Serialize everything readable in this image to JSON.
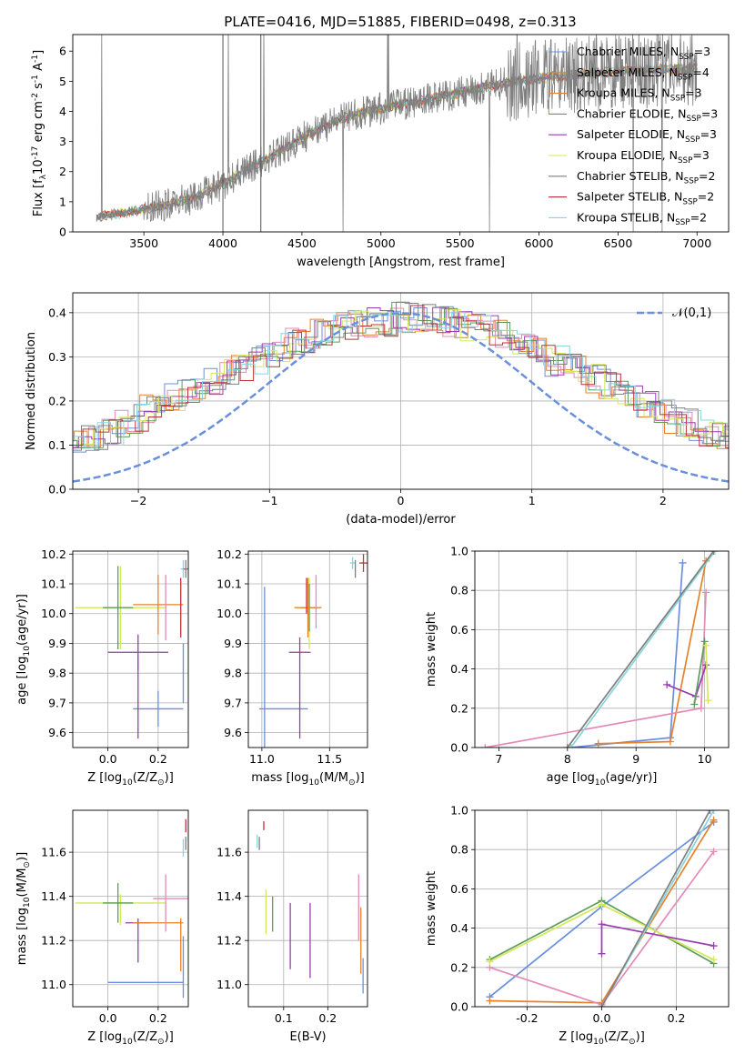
{
  "figure": {
    "title": "PLATE=0416, MJD=51885, FIBERID=0498, z=0.313"
  },
  "colors": {
    "blue": "#6a8fde",
    "orange": "#e8822a",
    "pink": "#e48ab7",
    "green": "#5c9d5c",
    "purple": "#9a3cb0",
    "yellow": "#d4e85a",
    "grey": "#7f7f7f",
    "red": "#c0303a",
    "cyan": "#88d6dc",
    "gauss": "#6a8fde",
    "grid": "#b0b0b0"
  },
  "chart_data": [
    {
      "id": "spectrum",
      "type": "line",
      "title": "PLATE=0416, MJD=51885, FIBERID=0498, z=0.313",
      "xlabel": "wavelength [Angstrom, rest frame]",
      "ylabel": "Flux [f$_\\lambda$10$^{-17}$ erg cm$^{-2}$ s$^{-1}$ A$^{-1}$]",
      "xlim": [
        3050,
        7200
      ],
      "ylim": [
        0,
        6.55
      ],
      "xticks": [
        3500,
        4000,
        4500,
        5000,
        5500,
        6000,
        6500,
        7000
      ],
      "yticks": [
        0,
        1,
        2,
        3,
        4,
        5,
        6
      ],
      "grid": false,
      "legend_position": "top-right",
      "data_color": "#7f7f7f",
      "continuum": {
        "x": [
          3200,
          3400,
          3600,
          3800,
          4000,
          4200,
          4400,
          4600,
          4800,
          5000,
          5200,
          5400,
          5600,
          5800,
          6000,
          6200,
          6400,
          6600,
          6800,
          7000
        ],
        "y": [
          0.5,
          0.65,
          0.85,
          1.1,
          1.6,
          2.2,
          2.8,
          3.4,
          3.85,
          4.1,
          4.3,
          4.5,
          4.75,
          4.95,
          5.1,
          5.2,
          5.3,
          5.35,
          5.4,
          5.45
        ]
      },
      "series": [
        {
          "name": "Chabrier MILES, N$_{SSP}$=3",
          "color": "#6a8fde"
        },
        {
          "name": "Salpeter MILES, N$_{SSP}$=4",
          "color": "#e8822a"
        },
        {
          "name": "Kroupa MILES, N$_{SSP}$=3",
          "color": "#e8822a"
        },
        {
          "name": "Chabrier ELODIE, N$_{SSP}$=3",
          "color": "#5c9d5c"
        },
        {
          "name": "Salpeter ELODIE, N$_{SSP}$=3",
          "color": "#9a3cb0"
        },
        {
          "name": "Kroupa ELODIE, N$_{SSP}$=3",
          "color": "#d4e85a"
        },
        {
          "name": "Chabrier STELIB, N$_{SSP}$=2",
          "color": "#7f7f7f"
        },
        {
          "name": "Salpeter STELIB, N$_{SSP}$=2",
          "color": "#c0303a"
        },
        {
          "name": "Kroupa STELIB, N$_{SSP}$=2",
          "color": "#88d6dc"
        }
      ]
    },
    {
      "id": "residuals",
      "type": "line",
      "xlabel": "(data-model)/error",
      "ylabel": "Normed distribution",
      "xlim": [
        -2.5,
        2.5
      ],
      "ylim": [
        0,
        0.445
      ],
      "xticks": [
        -2,
        -1,
        0,
        1,
        2
      ],
      "yticks": [
        0.0,
        0.1,
        0.2,
        0.3,
        0.4
      ],
      "grid": true,
      "legend_position": "top-right",
      "gaussian": {
        "name": "$\\mathcal{N}(0,1)$",
        "color": "#6a8fde"
      },
      "bin_width": 0.1,
      "base_hist": [
        0.03,
        0.04,
        0.06,
        0.06,
        0.07,
        0.08,
        0.09,
        0.11,
        0.12,
        0.13,
        0.15,
        0.16,
        0.18,
        0.19,
        0.21,
        0.22,
        0.24,
        0.25,
        0.27,
        0.28,
        0.29,
        0.31,
        0.32,
        0.33,
        0.34,
        0.35,
        0.36,
        0.37,
        0.37,
        0.38,
        0.38,
        0.39,
        0.39,
        0.39,
        0.38,
        0.38,
        0.37,
        0.37,
        0.36,
        0.35,
        0.33,
        0.32,
        0.31,
        0.29,
        0.28,
        0.27,
        0.25,
        0.24,
        0.22,
        0.21,
        0.19,
        0.18,
        0.16,
        0.15,
        0.13,
        0.12,
        0.11,
        0.09,
        0.08,
        0.07,
        0.06,
        0.05,
        0.04,
        0.04,
        0.03
      ]
    },
    {
      "id": "age_vs_Z",
      "type": "scatter",
      "xlabel": "Z [log$_{10}$(Z/Z$_\\odot$)]",
      "ylabel": "age  [log$_{10}$(age/yr)]",
      "xlim": [
        -0.14,
        0.32
      ],
      "ylim": [
        9.55,
        10.21
      ],
      "xticks": [
        0.0,
        0.2
      ],
      "yticks": [
        9.6,
        9.7,
        9.8,
        9.9,
        10.0,
        10.1,
        10.2
      ],
      "grid": true,
      "points": [
        {
          "color": "#6a8fde",
          "x": 0.2,
          "xerr": 0.1,
          "y": 9.68,
          "yerr": 0.06
        },
        {
          "color": "#6a8fde",
          "x": 0.3,
          "xerr": 0.0,
          "y": 9.8,
          "yerr": 0.1
        },
        {
          "color": "#9a3cb0",
          "x": 0.12,
          "xerr": 0.12,
          "y": 9.87,
          "yerr": 0.06
        },
        {
          "color": "#9a3cb0",
          "x": 0.12,
          "xerr": 0.0,
          "y": 9.72,
          "yerr": 0.14
        },
        {
          "color": "#d4e85a",
          "x": 0.05,
          "xerr": 0.18,
          "y": 10.02,
          "yerr": 0.14
        },
        {
          "color": "#5c9d5c",
          "x": 0.04,
          "xerr": 0.06,
          "y": 10.02,
          "yerr": 0.14
        },
        {
          "color": "#e8822a",
          "x": 0.2,
          "xerr": 0.1,
          "y": 10.03,
          "yerr": 0.1
        },
        {
          "color": "#e48ab7",
          "x": 0.23,
          "xerr": 0.0,
          "y": 10.02,
          "yerr": 0.11
        },
        {
          "color": "#c0303a",
          "x": 0.29,
          "xerr": 0.0,
          "y": 10.02,
          "yerr": 0.1
        },
        {
          "color": "#88d6dc",
          "x": 0.3,
          "xerr": 0.01,
          "y": 10.15,
          "yerr": 0.03
        },
        {
          "color": "#7f7f7f",
          "x": 0.31,
          "xerr": 0.01,
          "y": 10.15,
          "yerr": 0.03
        }
      ]
    },
    {
      "id": "age_vs_mass",
      "type": "scatter",
      "xlabel": "mass [log$_{10}$(M/M$_\\odot$)]",
      "ylabel": "",
      "xlim": [
        10.9,
        11.78
      ],
      "ylim": [
        9.55,
        10.21
      ],
      "xticks": [
        11.0,
        11.5
      ],
      "yticks": [
        9.6,
        9.7,
        9.8,
        9.9,
        10.0,
        10.1,
        10.2
      ],
      "grid": true,
      "points": [
        {
          "color": "#6a8fde",
          "x": 11.16,
          "xerr": 0.18,
          "y": 9.68,
          "yerr": 0.0
        },
        {
          "color": "#6a8fde",
          "x": 11.02,
          "xerr": 0.0,
          "y": 9.78,
          "yerr": 0.31
        },
        {
          "color": "#9a3cb0",
          "x": 11.28,
          "xerr": 0.08,
          "y": 9.87,
          "yerr": 0.0
        },
        {
          "color": "#9a3cb0",
          "x": 11.28,
          "xerr": 0.0,
          "y": 9.75,
          "yerr": 0.17
        },
        {
          "color": "#d4e85a",
          "x": 11.35,
          "xerr": 0.01,
          "y": 10.0,
          "yerr": 0.12
        },
        {
          "color": "#5c9d5c",
          "x": 11.35,
          "xerr": 0.06,
          "y": 10.02,
          "yerr": 0.08
        },
        {
          "color": "#e8822a",
          "x": 11.34,
          "xerr": 0.1,
          "y": 10.02,
          "yerr": 0.1
        },
        {
          "color": "#e48ab7",
          "x": 11.4,
          "xerr": 0.0,
          "y": 10.04,
          "yerr": 0.09
        },
        {
          "color": "#c0303a",
          "x": 11.33,
          "xerr": 0.0,
          "y": 10.06,
          "yerr": 0.06
        },
        {
          "color": "#88d6dc",
          "x": 11.67,
          "xerr": 0.02,
          "y": 10.17,
          "yerr": 0.02
        },
        {
          "color": "#7f7f7f",
          "x": 11.69,
          "xerr": 0.0,
          "y": 10.15,
          "yerr": 0.03
        },
        {
          "color": "#c0303a",
          "x": 11.75,
          "xerr": 0.03,
          "y": 10.17,
          "yerr": 0.03
        }
      ]
    },
    {
      "id": "weight_vs_age",
      "type": "line",
      "xlabel": "age  [log$_{10}$(age/yr)]",
      "ylabel": "mass weight",
      "xlim": [
        6.65,
        10.35
      ],
      "ylim": [
        0,
        1
      ],
      "xticks": [
        7,
        8,
        9,
        10
      ],
      "yticks": [
        0.0,
        0.2,
        0.4,
        0.6,
        0.8,
        1.0
      ],
      "grid": true,
      "series": [
        {
          "color": "#6a8fde",
          "points": [
            [
              8.05,
              0.0
            ],
            [
              9.5,
              0.05
            ],
            [
              9.68,
              0.94
            ]
          ]
        },
        {
          "color": "#e8822a",
          "points": [
            [
              8.45,
              0.02
            ],
            [
              9.5,
              0.03
            ],
            [
              10.02,
              0.95
            ]
          ]
        },
        {
          "color": "#e48ab7",
          "points": [
            [
              6.8,
              0.0
            ],
            [
              9.95,
              0.2
            ],
            [
              10.02,
              0.79
            ]
          ]
        },
        {
          "color": "#9a3cb0",
          "points": [
            [
              9.45,
              0.32
            ],
            [
              9.87,
              0.26
            ],
            [
              10.02,
              0.42
            ]
          ]
        },
        {
          "color": "#5c9d5c",
          "points": [
            [
              9.85,
              0.22
            ],
            [
              10.0,
              0.54
            ]
          ]
        },
        {
          "color": "#d4e85a",
          "points": [
            [
              10.02,
              0.52
            ],
            [
              10.05,
              0.24
            ]
          ]
        },
        {
          "color": "#88d6dc",
          "points": [
            [
              8.05,
              0.0
            ],
            [
              10.15,
              1.0
            ]
          ]
        },
        {
          "color": "#7f7f7f",
          "points": [
            [
              8.0,
              0.0
            ],
            [
              10.13,
              1.0
            ]
          ]
        }
      ]
    },
    {
      "id": "mass_vs_Z",
      "type": "scatter",
      "xlabel": "Z [log$_{10}$(Z/Z$_\\odot$)]",
      "ylabel": "mass [log$_{10}$(M/M$_\\odot$)]",
      "xlim": [
        -0.14,
        0.32
      ],
      "ylim": [
        10.9,
        11.79
      ],
      "xticks": [
        0.0,
        0.2
      ],
      "yticks": [
        11.0,
        11.2,
        11.4,
        11.6
      ],
      "grid": true,
      "points": [
        {
          "color": "#6a8fde",
          "x": 0.15,
          "xerr": 0.15,
          "y": 11.01,
          "yerr": 0.0
        },
        {
          "color": "#6a8fde",
          "x": 0.3,
          "xerr": 0.0,
          "y": 11.08,
          "yerr": 0.14
        },
        {
          "color": "#9a3cb0",
          "x": 0.12,
          "xerr": 0.05,
          "y": 11.28,
          "yerr": 0.0
        },
        {
          "color": "#9a3cb0",
          "x": 0.12,
          "xerr": 0.0,
          "y": 11.2,
          "yerr": 0.1
        },
        {
          "color": "#d4e85a",
          "x": 0.05,
          "xerr": 0.18,
          "y": 11.37,
          "yerr": 0.0
        },
        {
          "color": "#d4e85a",
          "x": 0.05,
          "xerr": 0.0,
          "y": 11.34,
          "yerr": 0.07
        },
        {
          "color": "#5c9d5c",
          "x": 0.04,
          "xerr": 0.06,
          "y": 11.37,
          "yerr": 0.09
        },
        {
          "color": "#e8822a",
          "x": 0.2,
          "xerr": 0.1,
          "y": 11.28,
          "yerr": 0.0
        },
        {
          "color": "#e8822a",
          "x": 0.29,
          "xerr": 0.0,
          "y": 11.18,
          "yerr": 0.12
        },
        {
          "color": "#e48ab7",
          "x": 0.23,
          "xerr": 0.0,
          "y": 11.37,
          "yerr": 0.13
        },
        {
          "color": "#e48ab7",
          "x": 0.25,
          "xerr": 0.07,
          "y": 11.39,
          "yerr": 0.0
        },
        {
          "color": "#c0303a",
          "x": 0.31,
          "xerr": 0.0,
          "y": 11.72,
          "yerr": 0.03
        },
        {
          "color": "#88d6dc",
          "x": 0.3,
          "xerr": 0.0,
          "y": 11.62,
          "yerr": 0.04
        },
        {
          "color": "#7f7f7f",
          "x": 0.31,
          "xerr": 0.0,
          "y": 11.64,
          "yerr": 0.03
        }
      ]
    },
    {
      "id": "mass_vs_ebv",
      "type": "scatter",
      "xlabel": "E(B-V)",
      "ylabel": "",
      "xlim": [
        0.02,
        0.29
      ],
      "ylim": [
        10.9,
        11.79
      ],
      "xticks": [
        0.1,
        0.2
      ],
      "yticks": [
        11.0,
        11.2,
        11.4,
        11.6
      ],
      "grid": true,
      "points": [
        {
          "color": "#88d6dc",
          "x": 0.04,
          "xerr": 0.0,
          "y": 11.65,
          "yerr": 0.03
        },
        {
          "color": "#7f7f7f",
          "x": 0.045,
          "xerr": 0.0,
          "y": 11.64,
          "yerr": 0.03
        },
        {
          "color": "#c0303a",
          "x": 0.055,
          "xerr": 0.0,
          "y": 11.72,
          "yerr": 0.02
        },
        {
          "color": "#d4e85a",
          "x": 0.06,
          "xerr": 0.0,
          "y": 11.33,
          "yerr": 0.1
        },
        {
          "color": "#5c9d5c",
          "x": 0.075,
          "xerr": 0.0,
          "y": 11.32,
          "yerr": 0.08
        },
        {
          "color": "#9a3cb0",
          "x": 0.115,
          "xerr": 0.0,
          "y": 11.22,
          "yerr": 0.15
        },
        {
          "color": "#9a3cb0",
          "x": 0.16,
          "xerr": 0.0,
          "y": 11.2,
          "yerr": 0.17
        },
        {
          "color": "#e48ab7",
          "x": 0.27,
          "xerr": 0.0,
          "y": 11.35,
          "yerr": 0.15
        },
        {
          "color": "#e8822a",
          "x": 0.275,
          "xerr": 0.0,
          "y": 11.2,
          "yerr": 0.15
        },
        {
          "color": "#6a8fde",
          "x": 0.28,
          "xerr": 0.0,
          "y": 11.04,
          "yerr": 0.08
        }
      ]
    },
    {
      "id": "weight_vs_Z",
      "type": "line",
      "xlabel": "Z [log$_{10}$(Z/Z$_\\odot$)]",
      "ylabel": "mass weight",
      "xlim": [
        -0.34,
        0.34
      ],
      "ylim": [
        0,
        1
      ],
      "xticks": [
        -0.2,
        0.0,
        0.2
      ],
      "yticks": [
        0.0,
        0.2,
        0.4,
        0.6,
        0.8,
        1.0
      ],
      "grid": true,
      "series": [
        {
          "color": "#6a8fde",
          "points": [
            [
              -0.3,
              0.05
            ],
            [
              0.0,
              0.51
            ],
            [
              0.3,
              0.94
            ]
          ]
        },
        {
          "color": "#e8822a",
          "points": [
            [
              -0.3,
              0.03
            ],
            [
              0.0,
              0.02
            ],
            [
              0.3,
              0.95
            ]
          ]
        },
        {
          "color": "#e48ab7",
          "points": [
            [
              -0.3,
              0.2
            ],
            [
              0.0,
              0.01
            ],
            [
              0.3,
              0.79
            ]
          ]
        },
        {
          "color": "#5c9d5c",
          "points": [
            [
              -0.3,
              0.24
            ],
            [
              0.0,
              0.54
            ],
            [
              0.3,
              0.22
            ]
          ]
        },
        {
          "color": "#d4e85a",
          "points": [
            [
              -0.3,
              0.23
            ],
            [
              0.0,
              0.52
            ],
            [
              0.3,
              0.24
            ]
          ]
        },
        {
          "color": "#9a3cb0",
          "points": [
            [
              0.0,
              0.27
            ],
            [
              0.0,
              0.42
            ],
            [
              0.3,
              0.31
            ]
          ]
        },
        {
          "color": "#88d6dc",
          "points": [
            [
              0.0,
              0.0
            ],
            [
              0.3,
              1.0
            ]
          ]
        },
        {
          "color": "#7f7f7f",
          "points": [
            [
              0.0,
              0.0
            ],
            [
              0.29,
              1.0
            ]
          ]
        }
      ]
    }
  ]
}
